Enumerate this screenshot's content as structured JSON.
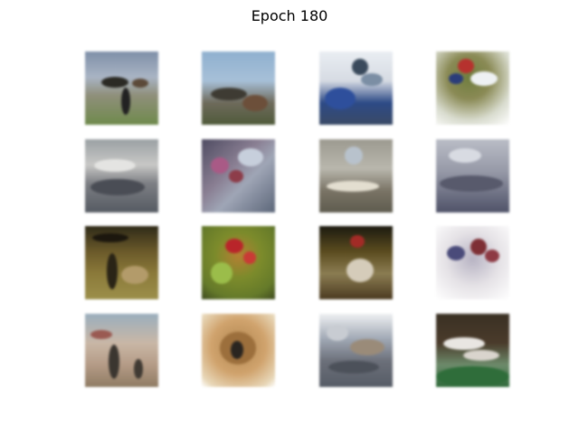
{
  "title": "Epoch 180",
  "grid": {
    "rows": 4,
    "cols": 4,
    "tiles": [
      {
        "name": "generated-sample-1"
      },
      {
        "name": "generated-sample-2"
      },
      {
        "name": "generated-sample-3"
      },
      {
        "name": "generated-sample-4"
      },
      {
        "name": "generated-sample-5"
      },
      {
        "name": "generated-sample-6"
      },
      {
        "name": "generated-sample-7"
      },
      {
        "name": "generated-sample-8"
      },
      {
        "name": "generated-sample-9"
      },
      {
        "name": "generated-sample-10"
      },
      {
        "name": "generated-sample-11"
      },
      {
        "name": "generated-sample-12"
      },
      {
        "name": "generated-sample-13"
      },
      {
        "name": "generated-sample-14"
      },
      {
        "name": "generated-sample-15"
      },
      {
        "name": "generated-sample-16"
      }
    ]
  }
}
